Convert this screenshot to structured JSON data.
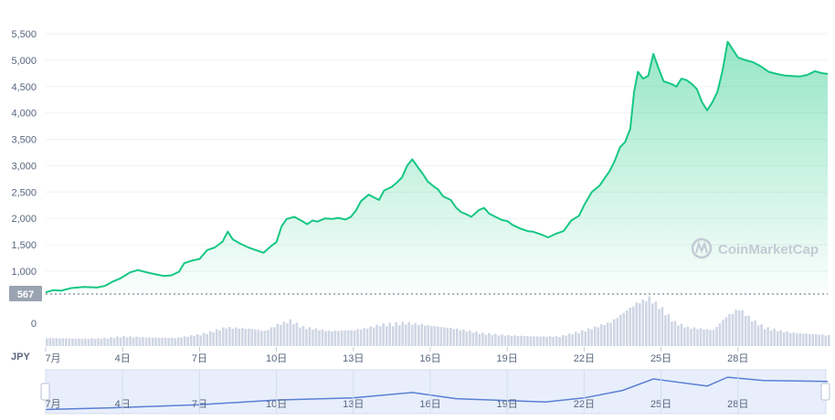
{
  "currency_label": "JPY",
  "current_price_label": "567",
  "watermark": "CoinMarketCap",
  "colors": {
    "line": "#16c784",
    "area_top": "#16c784",
    "volume": "#cfd6e4",
    "nav_line": "#5b7fd6",
    "nav_fill": "#e8eefc",
    "label_bg": "#9aa3b1"
  },
  "chart_data": {
    "type": "line",
    "title": "",
    "xlabel": "",
    "ylabel": "",
    "y_ticks": [
      "0",
      "1,000",
      "1,500",
      "2,000",
      "2,500",
      "3,000",
      "3,500",
      "4,000",
      "4,500",
      "5,000",
      "5,500"
    ],
    "y_tick_values": [
      0,
      1000,
      1500,
      2000,
      2500,
      3000,
      3500,
      4000,
      4500,
      5000,
      5500
    ],
    "x_ticks": [
      "7月",
      "4日",
      "7日",
      "10日",
      "13日",
      "16日",
      "19日",
      "22日",
      "25日",
      "28日"
    ],
    "x_tick_days": [
      1,
      4,
      7,
      10,
      13,
      16,
      19,
      22,
      25,
      28
    ],
    "ylim": [
      0,
      5800
    ],
    "xlim": [
      1,
      31.5
    ],
    "reference_line": 567,
    "grid": true,
    "series": [
      {
        "values": [
          [
            1,
            600
          ],
          [
            1.3,
            640
          ],
          [
            1.6,
            630
          ],
          [
            2,
            680
          ],
          [
            2.5,
            700
          ],
          [
            3,
            690
          ],
          [
            3.3,
            720
          ],
          [
            3.6,
            800
          ],
          [
            3.9,
            860
          ],
          [
            4.1,
            920
          ],
          [
            4.3,
            980
          ],
          [
            4.6,
            1020
          ],
          [
            5,
            970
          ],
          [
            5.3,
            940
          ],
          [
            5.6,
            910
          ],
          [
            5.9,
            920
          ],
          [
            6.2,
            990
          ],
          [
            6.4,
            1150
          ],
          [
            6.7,
            1200
          ],
          [
            7,
            1230
          ],
          [
            7.3,
            1400
          ],
          [
            7.6,
            1450
          ],
          [
            7.9,
            1560
          ],
          [
            8.1,
            1750
          ],
          [
            8.3,
            1600
          ],
          [
            8.6,
            1520
          ],
          [
            8.9,
            1450
          ],
          [
            9.2,
            1400
          ],
          [
            9.5,
            1350
          ],
          [
            9.8,
            1480
          ],
          [
            10,
            1550
          ],
          [
            10.2,
            1850
          ],
          [
            10.4,
            1990
          ],
          [
            10.7,
            2030
          ],
          [
            11,
            1950
          ],
          [
            11.2,
            1890
          ],
          [
            11.4,
            1960
          ],
          [
            11.6,
            1940
          ],
          [
            11.9,
            2000
          ],
          [
            12.2,
            1990
          ],
          [
            12.4,
            2010
          ],
          [
            12.7,
            1980
          ],
          [
            12.9,
            2030
          ],
          [
            13.1,
            2150
          ],
          [
            13.3,
            2330
          ],
          [
            13.6,
            2450
          ],
          [
            13.8,
            2400
          ],
          [
            14,
            2350
          ],
          [
            14.2,
            2530
          ],
          [
            14.5,
            2600
          ],
          [
            14.7,
            2680
          ],
          [
            14.9,
            2780
          ],
          [
            15.1,
            3000
          ],
          [
            15.3,
            3120
          ],
          [
            15.5,
            2980
          ],
          [
            15.7,
            2850
          ],
          [
            15.9,
            2700
          ],
          [
            16.1,
            2620
          ],
          [
            16.3,
            2550
          ],
          [
            16.5,
            2420
          ],
          [
            16.8,
            2350
          ],
          [
            17,
            2210
          ],
          [
            17.2,
            2120
          ],
          [
            17.4,
            2080
          ],
          [
            17.6,
            2030
          ],
          [
            17.9,
            2160
          ],
          [
            18.1,
            2200
          ],
          [
            18.3,
            2090
          ],
          [
            18.5,
            2040
          ],
          [
            18.8,
            1970
          ],
          [
            19,
            1950
          ],
          [
            19.2,
            1880
          ],
          [
            19.5,
            1810
          ],
          [
            19.8,
            1760
          ],
          [
            20,
            1750
          ],
          [
            20.3,
            1700
          ],
          [
            20.6,
            1640
          ],
          [
            20.9,
            1710
          ],
          [
            21.2,
            1760
          ],
          [
            21.5,
            1960
          ],
          [
            21.8,
            2050
          ],
          [
            22,
            2250
          ],
          [
            22.3,
            2500
          ],
          [
            22.6,
            2620
          ],
          [
            22.8,
            2760
          ],
          [
            23,
            2900
          ],
          [
            23.2,
            3100
          ],
          [
            23.4,
            3350
          ],
          [
            23.6,
            3450
          ],
          [
            23.8,
            3700
          ],
          [
            23.95,
            4400
          ],
          [
            24.1,
            4780
          ],
          [
            24.3,
            4650
          ],
          [
            24.5,
            4700
          ],
          [
            24.7,
            5120
          ],
          [
            24.9,
            4850
          ],
          [
            25.1,
            4600
          ],
          [
            25.4,
            4550
          ],
          [
            25.6,
            4500
          ],
          [
            25.8,
            4650
          ],
          [
            26,
            4620
          ],
          [
            26.2,
            4550
          ],
          [
            26.4,
            4450
          ],
          [
            26.6,
            4200
          ],
          [
            26.8,
            4050
          ],
          [
            27,
            4200
          ],
          [
            27.2,
            4400
          ],
          [
            27.4,
            4800
          ],
          [
            27.6,
            5350
          ],
          [
            27.8,
            5200
          ],
          [
            28,
            5050
          ],
          [
            28.3,
            5000
          ],
          [
            28.6,
            4960
          ],
          [
            28.9,
            4880
          ],
          [
            29.2,
            4780
          ],
          [
            29.5,
            4740
          ],
          [
            29.8,
            4710
          ],
          [
            30.1,
            4700
          ],
          [
            30.4,
            4690
          ],
          [
            30.7,
            4720
          ],
          [
            31,
            4790
          ],
          [
            31.3,
            4750
          ],
          [
            31.5,
            4740
          ]
        ]
      }
    ],
    "volume": [
      [
        1,
        15
      ],
      [
        2,
        14
      ],
      [
        3,
        14
      ],
      [
        4,
        18
      ],
      [
        5,
        16
      ],
      [
        6,
        15
      ],
      [
        7,
        22
      ],
      [
        8,
        35
      ],
      [
        9,
        32
      ],
      [
        9.5,
        28
      ],
      [
        10,
        40
      ],
      [
        10.5,
        48
      ],
      [
        11,
        36
      ],
      [
        12,
        28
      ],
      [
        13,
        30
      ],
      [
        13.5,
        34
      ],
      [
        14,
        40
      ],
      [
        15,
        44
      ],
      [
        16,
        38
      ],
      [
        17,
        32
      ],
      [
        18,
        24
      ],
      [
        19,
        20
      ],
      [
        20,
        18
      ],
      [
        21,
        18
      ],
      [
        22,
        30
      ],
      [
        23,
        45
      ],
      [
        24,
        80
      ],
      [
        24.5,
        90
      ],
      [
        25,
        70
      ],
      [
        25.5,
        45
      ],
      [
        26,
        35
      ],
      [
        27,
        30
      ],
      [
        27.5,
        55
      ],
      [
        28,
        70
      ],
      [
        28.5,
        50
      ],
      [
        29,
        35
      ],
      [
        30,
        25
      ],
      [
        31,
        22
      ],
      [
        31.5,
        20
      ]
    ],
    "navigator": [
      [
        1,
        600
      ],
      [
        4,
        900
      ],
      [
        7,
        1300
      ],
      [
        10,
        2000
      ],
      [
        13,
        2300
      ],
      [
        15.3,
        3100
      ],
      [
        17,
        2200
      ],
      [
        20.5,
        1700
      ],
      [
        22,
        2300
      ],
      [
        23.5,
        3400
      ],
      [
        24.7,
        5100
      ],
      [
        26.8,
        4050
      ],
      [
        27.6,
        5350
      ],
      [
        29,
        4850
      ],
      [
        31.5,
        4740
      ]
    ]
  }
}
